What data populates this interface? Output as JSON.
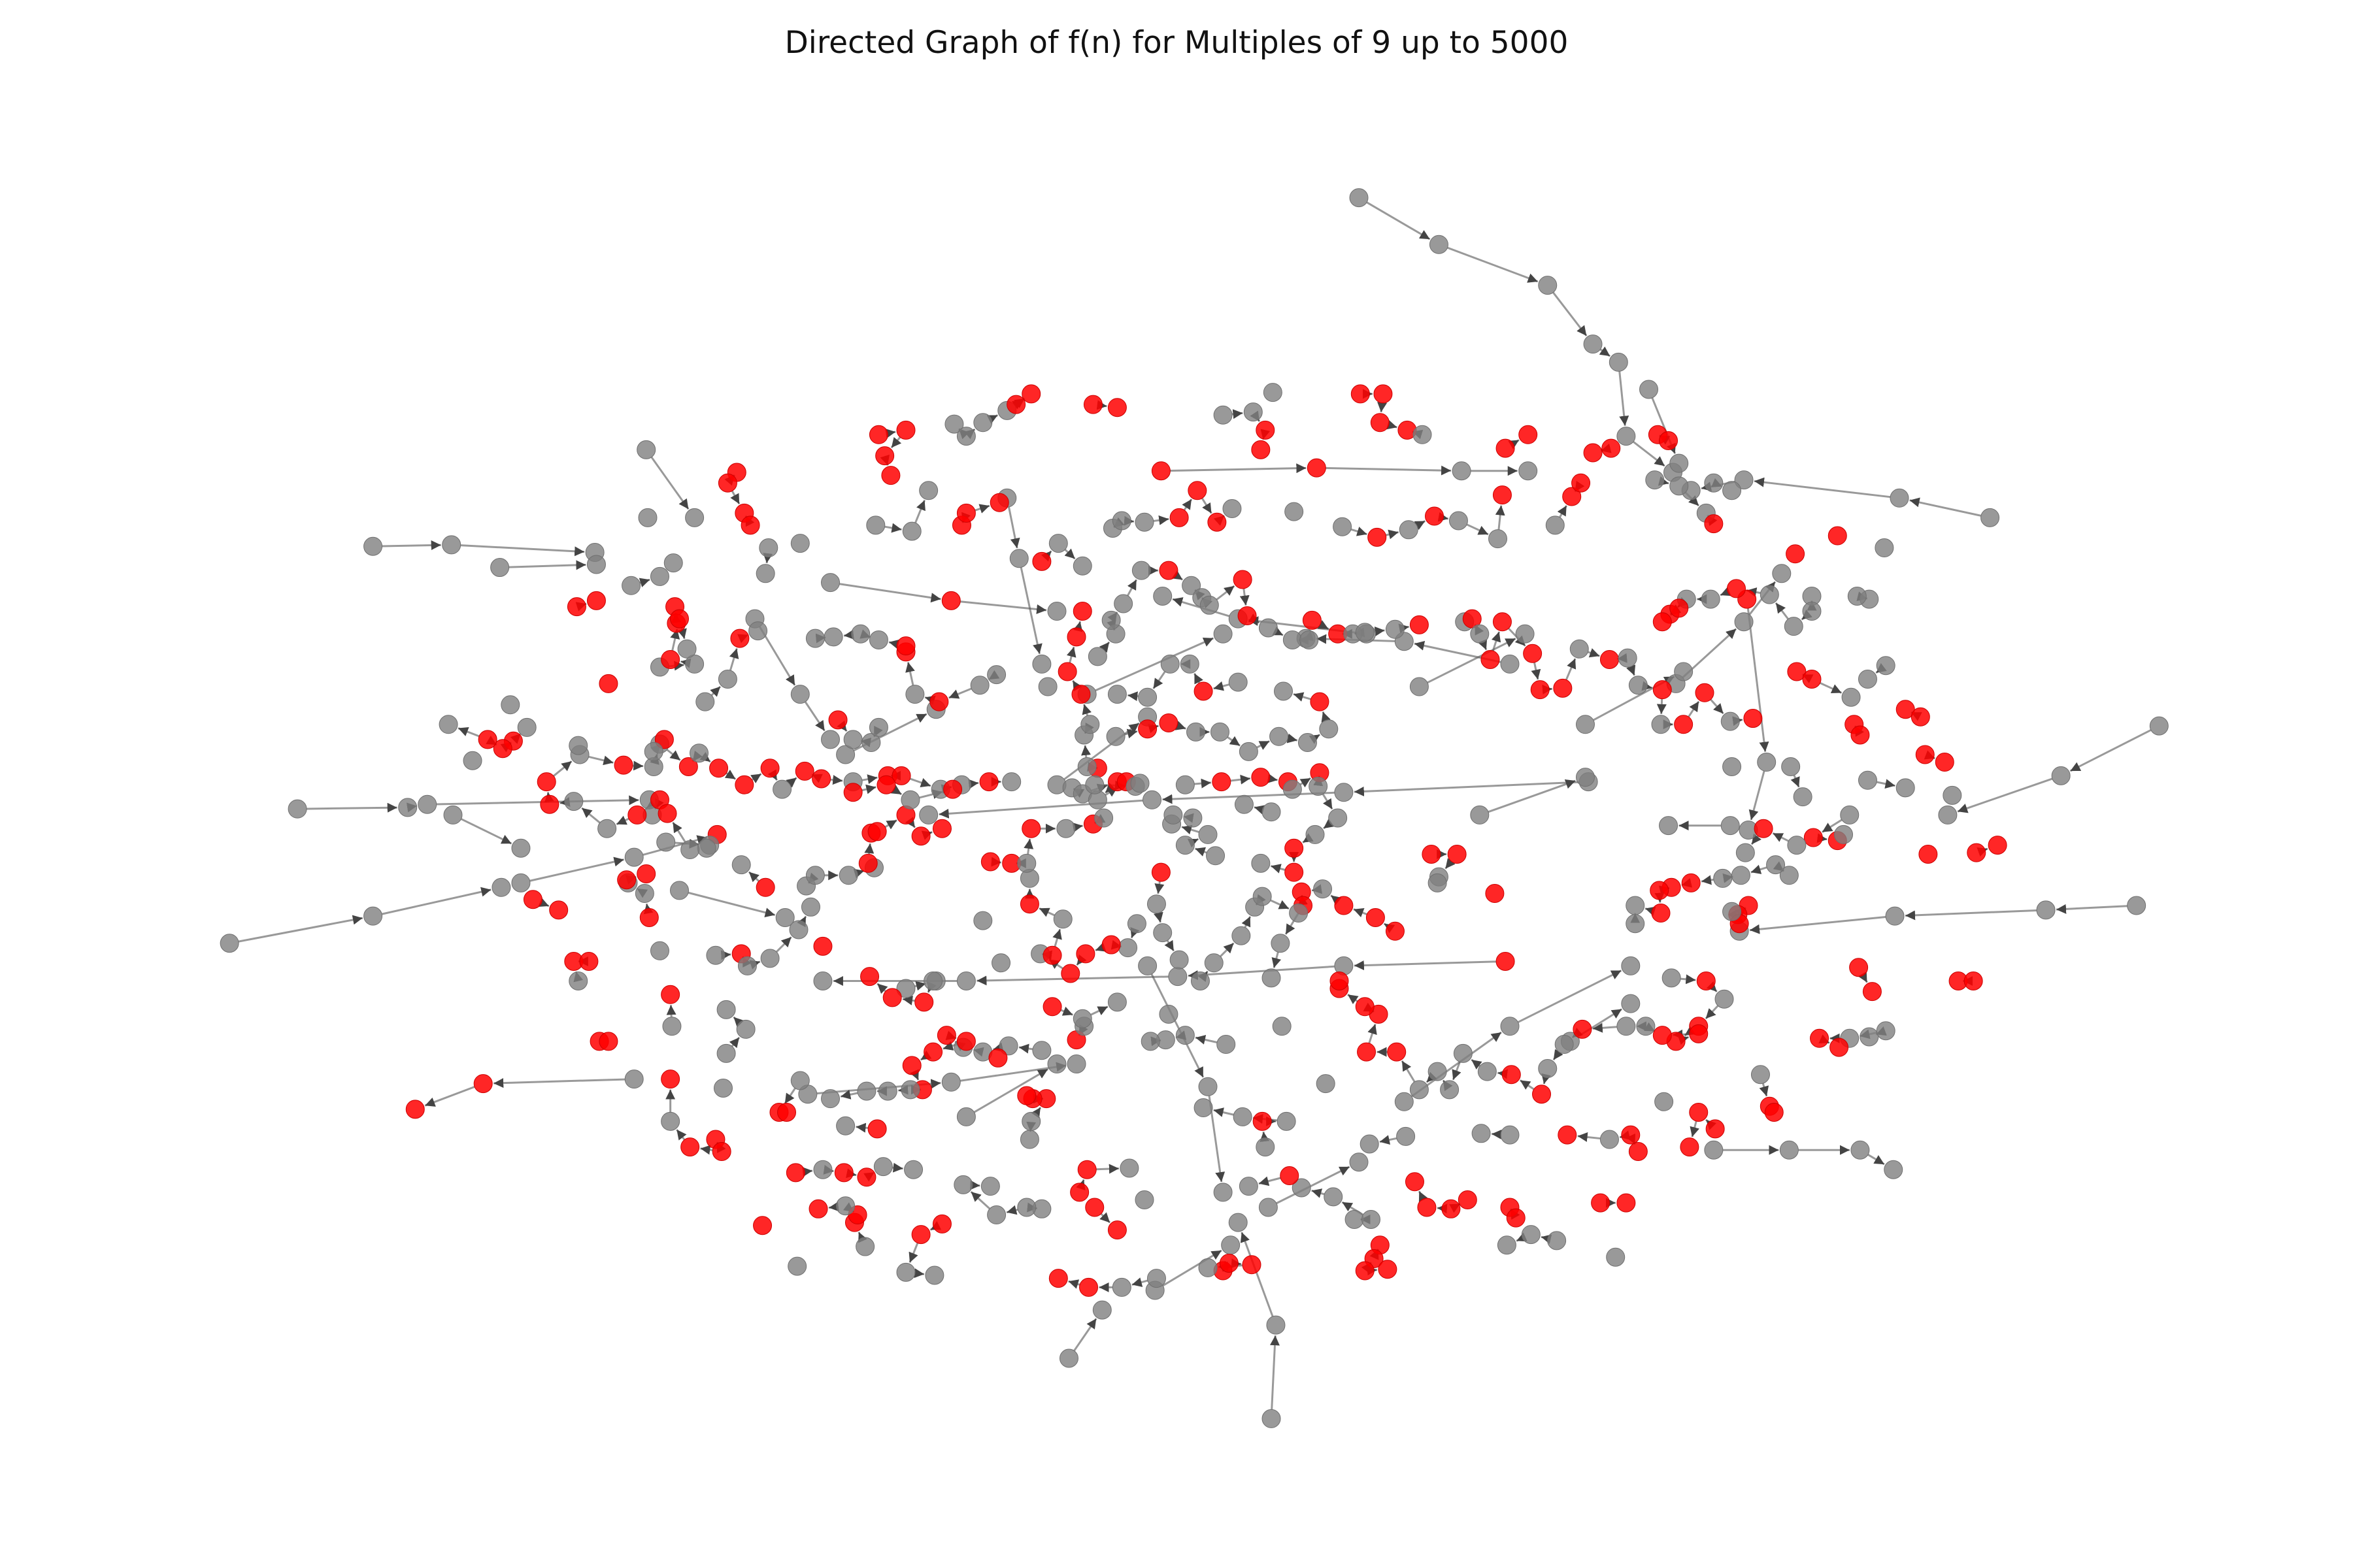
{
  "title": "Directed Graph of f(n) for Multiples of 9 up to 5000",
  "colors": {
    "background": "#ffffff",
    "node_regular": "#808080",
    "node_highlight": "#ff0000",
    "edge": "#555555"
  },
  "graph": {
    "directed": true,
    "node_types": [
      "regular",
      "highlight"
    ],
    "legend": "none",
    "axes": "hidden"
  }
}
